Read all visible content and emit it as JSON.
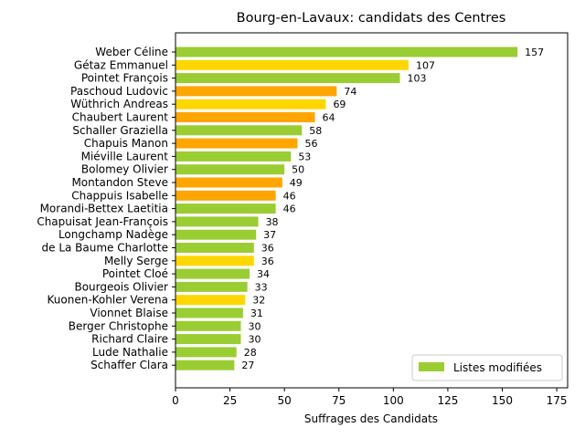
{
  "chart_data": {
    "type": "bar",
    "orientation": "horizontal",
    "title": "Bourg-en-Lavaux: candidats des Centres",
    "xlabel": "Suffrages des Candidats",
    "ylabel": "",
    "xlim": [
      0,
      180
    ],
    "x_ticks": [
      0,
      25,
      50,
      75,
      100,
      125,
      150,
      175
    ],
    "x_tick_labels": [
      "0",
      "25",
      "50",
      "75",
      "100",
      "125",
      "150",
      "175"
    ],
    "grid": false,
    "legend": {
      "position": "lower-right",
      "entries": [
        {
          "label": "Listes modifiées",
          "color": "#9acd32"
        }
      ]
    },
    "colors": {
      "green": "#9acd32",
      "yellow": "#ffd700",
      "orange": "#ffa500"
    },
    "categories": [
      "Weber Céline",
      "Gétaz Emmanuel",
      "Pointet François",
      "Paschoud Ludovic",
      "Wüthrich Andreas",
      "Chaubert Laurent",
      "Schaller Graziella",
      "Chapuis Manon",
      "Miéville Laurent",
      "Bolomey Olivier",
      "Montandon Steve",
      "Chappuis Isabelle",
      "Morandi-Bettex Laetitia",
      "Chapuisat Jean-François",
      "Longchamp Nadège",
      "de La Baume Charlotte",
      "Melly Serge",
      "Pointet Cloé",
      "Bourgeois Olivier",
      "Kuonen-Kohler Verena",
      "Vionnet Blaise",
      "Berger Christophe",
      "Richard Claire",
      "Lude Nathalie",
      "Schaffer Clara"
    ],
    "values": [
      157,
      107,
      103,
      74,
      69,
      64,
      58,
      56,
      53,
      50,
      49,
      46,
      46,
      38,
      37,
      36,
      36,
      34,
      33,
      32,
      31,
      30,
      30,
      28,
      27
    ],
    "bar_colors": [
      "#9acd32",
      "#ffd700",
      "#9acd32",
      "#ffa500",
      "#ffd700",
      "#ffa500",
      "#9acd32",
      "#ffa500",
      "#9acd32",
      "#9acd32",
      "#ffa500",
      "#ffa500",
      "#9acd32",
      "#9acd32",
      "#9acd32",
      "#9acd32",
      "#ffd700",
      "#9acd32",
      "#9acd32",
      "#ffd700",
      "#9acd32",
      "#9acd32",
      "#9acd32",
      "#9acd32",
      "#9acd32"
    ]
  }
}
